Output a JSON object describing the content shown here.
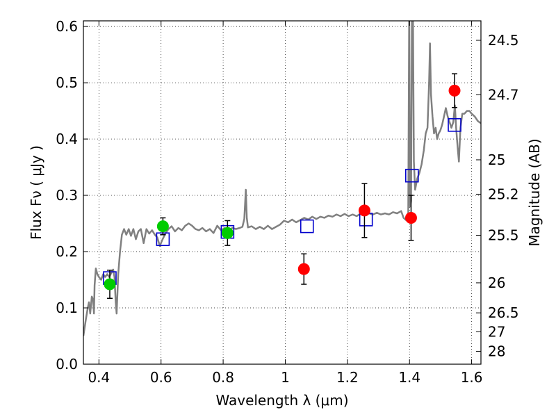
{
  "chart_data": {
    "type": "scatter",
    "xlabel": "Wavelength  λ (μm)",
    "ylabel": "Flux  Fν  ( μJy )",
    "ylabel_right": "Magnitude (AB)",
    "xlim": [
      0.35,
      1.63
    ],
    "ylim": [
      0.0,
      0.61
    ],
    "grid": true,
    "x_ticks": [
      {
        "value": 0.4,
        "label": "0.4"
      },
      {
        "value": 0.6,
        "label": "0.6"
      },
      {
        "value": 0.8,
        "label": "0.8"
      },
      {
        "value": 1.0,
        "label": "1"
      },
      {
        "value": 1.2,
        "label": "1.2"
      },
      {
        "value": 1.4,
        "label": "1.4"
      },
      {
        "value": 1.6,
        "label": "1.6"
      }
    ],
    "y_ticks": [
      {
        "value": 0.0,
        "label": "0.0"
      },
      {
        "value": 0.1,
        "label": "0.1"
      },
      {
        "value": 0.2,
        "label": "0.2"
      },
      {
        "value": 0.3,
        "label": "0.3"
      },
      {
        "value": 0.4,
        "label": "0.4"
      },
      {
        "value": 0.5,
        "label": "0.5"
      },
      {
        "value": 0.6,
        "label": "0.6"
      }
    ],
    "right_ticks": [
      {
        "mag": 24.5,
        "label": "24.5"
      },
      {
        "mag": 24.7,
        "label": "24.7"
      },
      {
        "mag": 25.0,
        "label": "25"
      },
      {
        "mag": 25.2,
        "label": "25.2"
      },
      {
        "mag": 25.5,
        "label": "25.5"
      },
      {
        "mag": 26.0,
        "label": "26"
      },
      {
        "mag": 26.5,
        "label": "26.5"
      },
      {
        "mag": 27.0,
        "label": "27"
      },
      {
        "mag": 28.0,
        "label": "28"
      }
    ],
    "colors": {
      "model": "#808080",
      "model_flux": "#0000cc",
      "optical": "#00cc00",
      "infrared": "#ff0000",
      "errorbar": "#000000"
    },
    "model_spectrum": [
      [
        0.35,
        0.05
      ],
      [
        0.358,
        0.08
      ],
      [
        0.364,
        0.1
      ],
      [
        0.368,
        0.11
      ],
      [
        0.372,
        0.09
      ],
      [
        0.377,
        0.12
      ],
      [
        0.381,
        0.115
      ],
      [
        0.384,
        0.09
      ],
      [
        0.386,
        0.14
      ],
      [
        0.39,
        0.17
      ],
      [
        0.395,
        0.16
      ],
      [
        0.4,
        0.155
      ],
      [
        0.407,
        0.15
      ],
      [
        0.414,
        0.16
      ],
      [
        0.42,
        0.155
      ],
      [
        0.427,
        0.16
      ],
      [
        0.433,
        0.155
      ],
      [
        0.44,
        0.162
      ],
      [
        0.446,
        0.168
      ],
      [
        0.45,
        0.155
      ],
      [
        0.454,
        0.11
      ],
      [
        0.457,
        0.09
      ],
      [
        0.462,
        0.16
      ],
      [
        0.468,
        0.2
      ],
      [
        0.474,
        0.23
      ],
      [
        0.481,
        0.24
      ],
      [
        0.488,
        0.23
      ],
      [
        0.496,
        0.24
      ],
      [
        0.503,
        0.228
      ],
      [
        0.511,
        0.24
      ],
      [
        0.519,
        0.222
      ],
      [
        0.527,
        0.236
      ],
      [
        0.535,
        0.24
      ],
      [
        0.544,
        0.215
      ],
      [
        0.553,
        0.24
      ],
      [
        0.562,
        0.232
      ],
      [
        0.571,
        0.238
      ],
      [
        0.58,
        0.23
      ],
      [
        0.588,
        0.225
      ],
      [
        0.596,
        0.21
      ],
      [
        0.605,
        0.222
      ],
      [
        0.614,
        0.232
      ],
      [
        0.624,
        0.24
      ],
      [
        0.634,
        0.245
      ],
      [
        0.645,
        0.236
      ],
      [
        0.656,
        0.242
      ],
      [
        0.667,
        0.238
      ],
      [
        0.678,
        0.246
      ],
      [
        0.689,
        0.25
      ],
      [
        0.7,
        0.246
      ],
      [
        0.711,
        0.24
      ],
      [
        0.722,
        0.238
      ],
      [
        0.733,
        0.242
      ],
      [
        0.745,
        0.236
      ],
      [
        0.757,
        0.24
      ],
      [
        0.769,
        0.233
      ],
      [
        0.781,
        0.246
      ],
      [
        0.793,
        0.238
      ],
      [
        0.805,
        0.242
      ],
      [
        0.817,
        0.236
      ],
      [
        0.829,
        0.242
      ],
      [
        0.841,
        0.24
      ],
      [
        0.853,
        0.242
      ],
      [
        0.862,
        0.244
      ],
      [
        0.868,
        0.258
      ],
      [
        0.873,
        0.31
      ],
      [
        0.876,
        0.26
      ],
      [
        0.88,
        0.243
      ],
      [
        0.892,
        0.245
      ],
      [
        0.905,
        0.24
      ],
      [
        0.918,
        0.244
      ],
      [
        0.931,
        0.24
      ],
      [
        0.944,
        0.246
      ],
      [
        0.957,
        0.24
      ],
      [
        0.97,
        0.244
      ],
      [
        0.983,
        0.248
      ],
      [
        0.996,
        0.255
      ],
      [
        1.009,
        0.252
      ],
      [
        1.022,
        0.257
      ],
      [
        1.035,
        0.252
      ],
      [
        1.048,
        0.256
      ],
      [
        1.061,
        0.26
      ],
      [
        1.074,
        0.257
      ],
      [
        1.087,
        0.262
      ],
      [
        1.1,
        0.258
      ],
      [
        1.113,
        0.262
      ],
      [
        1.126,
        0.26
      ],
      [
        1.139,
        0.264
      ],
      [
        1.152,
        0.262
      ],
      [
        1.165,
        0.266
      ],
      [
        1.178,
        0.263
      ],
      [
        1.191,
        0.267
      ],
      [
        1.204,
        0.263
      ],
      [
        1.217,
        0.266
      ],
      [
        1.23,
        0.263
      ],
      [
        1.243,
        0.268
      ],
      [
        1.256,
        0.265
      ],
      [
        1.269,
        0.268
      ],
      [
        1.282,
        0.266
      ],
      [
        1.295,
        0.269
      ],
      [
        1.308,
        0.266
      ],
      [
        1.321,
        0.268
      ],
      [
        1.334,
        0.266
      ],
      [
        1.347,
        0.27
      ],
      [
        1.36,
        0.268
      ],
      [
        1.373,
        0.272
      ],
      [
        1.381,
        0.26
      ],
      [
        1.389,
        0.256
      ],
      [
        1.396,
        0.262
      ],
      [
        1.399,
        0.64
      ],
      [
        1.402,
        0.28
      ],
      [
        1.405,
        0.29
      ],
      [
        1.408,
        0.64
      ],
      [
        1.411,
        0.64
      ],
      [
        1.414,
        0.36
      ],
      [
        1.418,
        0.31
      ],
      [
        1.425,
        0.33
      ],
      [
        1.432,
        0.34
      ],
      [
        1.439,
        0.355
      ],
      [
        1.446,
        0.38
      ],
      [
        1.452,
        0.41
      ],
      [
        1.458,
        0.42
      ],
      [
        1.463,
        0.5
      ],
      [
        1.466,
        0.57
      ],
      [
        1.469,
        0.48
      ],
      [
        1.474,
        0.44
      ],
      [
        1.479,
        0.41
      ],
      [
        1.484,
        0.42
      ],
      [
        1.489,
        0.4
      ],
      [
        1.494,
        0.41
      ],
      [
        1.499,
        0.415
      ],
      [
        1.505,
        0.425
      ],
      [
        1.511,
        0.44
      ],
      [
        1.517,
        0.455
      ],
      [
        1.523,
        0.44
      ],
      [
        1.529,
        0.43
      ],
      [
        1.535,
        0.42
      ],
      [
        1.541,
        0.43
      ],
      [
        1.546,
        0.46
      ],
      [
        1.55,
        0.42
      ],
      [
        1.555,
        0.385
      ],
      [
        1.559,
        0.36
      ],
      [
        1.564,
        0.42
      ],
      [
        1.57,
        0.445
      ],
      [
        1.577,
        0.445
      ],
      [
        1.585,
        0.45
      ],
      [
        1.593,
        0.45
      ],
      [
        1.6,
        0.445
      ],
      [
        1.61,
        0.44
      ],
      [
        1.62,
        0.432
      ],
      [
        1.63,
        0.428
      ]
    ],
    "model_band_fluxes": [
      {
        "x": 0.435,
        "y": 0.153
      },
      {
        "x": 0.606,
        "y": 0.222
      },
      {
        "x": 0.814,
        "y": 0.235
      },
      {
        "x": 1.07,
        "y": 0.245
      },
      {
        "x": 1.26,
        "y": 0.257
      },
      {
        "x": 1.408,
        "y": 0.335
      },
      {
        "x": 1.545,
        "y": 0.425
      }
    ],
    "observed_optical": [
      {
        "x": 0.435,
        "y": 0.142,
        "err": 0.025
      },
      {
        "x": 0.606,
        "y": 0.245,
        "err": 0.015
      },
      {
        "x": 0.814,
        "y": 0.233,
        "err": 0.022
      }
    ],
    "observed_infrared": [
      {
        "x": 1.06,
        "y": 0.169,
        "err": 0.027
      },
      {
        "x": 1.255,
        "y": 0.273,
        "err": 0.048
      },
      {
        "x": 1.405,
        "y": 0.26,
        "err": 0.04
      },
      {
        "x": 1.545,
        "y": 0.486,
        "err": 0.03
      }
    ]
  }
}
